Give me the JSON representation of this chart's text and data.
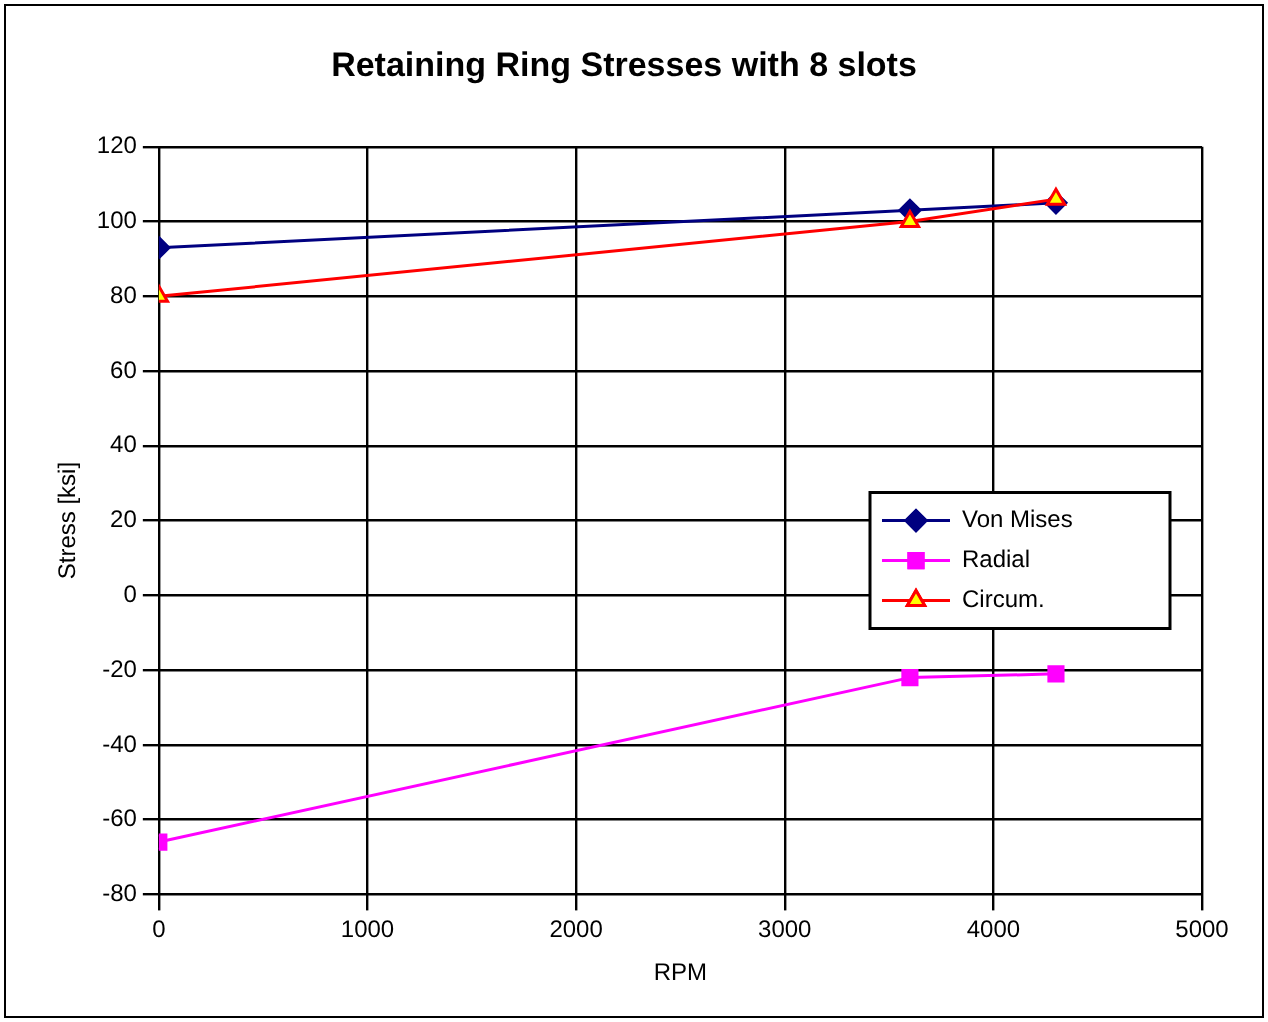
{
  "chart_data": {
    "type": "line",
    "title": "Retaining Ring Stresses with 8 slots",
    "xlabel": "RPM",
    "ylabel": "Stress [ksi]",
    "x": [
      0,
      3600,
      4300
    ],
    "series": [
      {
        "name": "Von Mises",
        "color": "#000080",
        "marker": "diamond",
        "values": [
          93,
          103,
          105
        ]
      },
      {
        "name": "Radial",
        "color": "#ff00ff",
        "marker": "square",
        "values": [
          -66,
          -22,
          -21
        ]
      },
      {
        "name": "Circum.",
        "color": "#ff0000",
        "marker": "triangle",
        "values": [
          80,
          100,
          106
        ]
      }
    ],
    "xlim": [
      0,
      5000
    ],
    "xticks": [
      0,
      1000,
      2000,
      3000,
      4000,
      5000
    ],
    "ylim": [
      -80,
      120
    ],
    "yticks": [
      -80,
      -60,
      -40,
      -20,
      0,
      20,
      40,
      60,
      80,
      100,
      120
    ],
    "grid": true,
    "legend": "right"
  }
}
